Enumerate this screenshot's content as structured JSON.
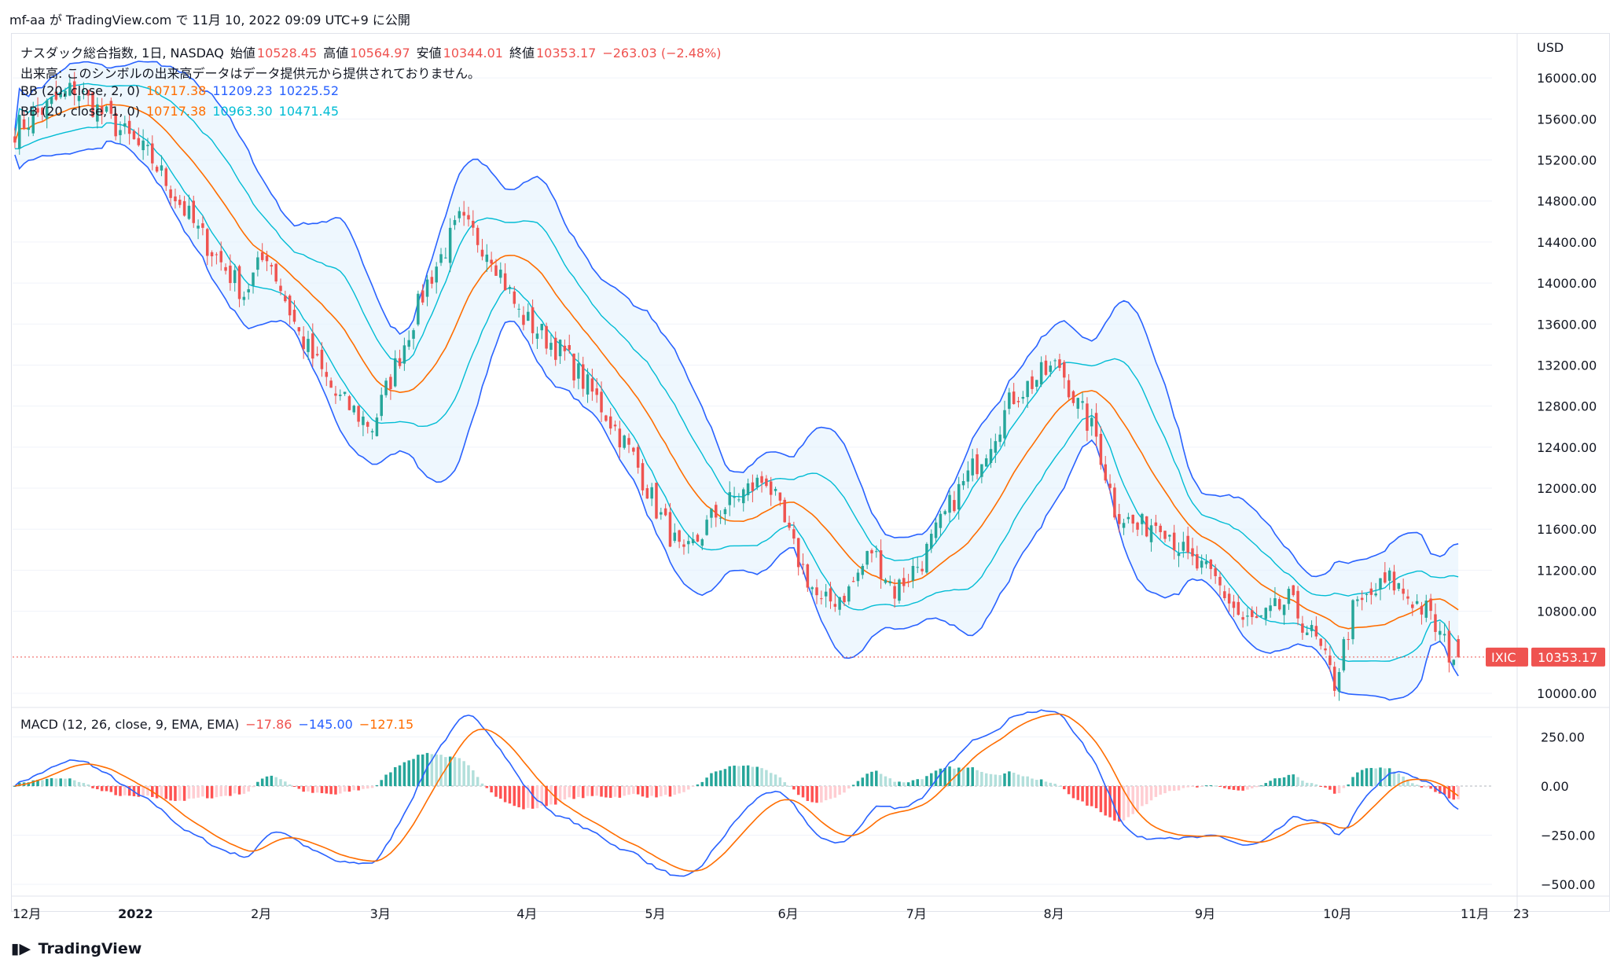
{
  "header": {
    "publish_text": "mf-aa が TradingView.com で 11月 10, 2022 09:09 UTC+9 に公開"
  },
  "legend": {
    "title": "ナスダック総合指数, 1日, NASDAQ",
    "open_label": "始値",
    "open": "10528.45",
    "high_label": "高値",
    "high": "10564.97",
    "low_label": "安値",
    "low": "10344.01",
    "close_label": "終値",
    "close": "10353.17",
    "change": "−263.03 (−2.48%)",
    "volume_note": "出来高: このシンボルの出来高データはデータ提供元から提供されておりません。",
    "bb1_label": "BB (20, close, 2, 0)",
    "bb1_basis": "10717.38",
    "bb1_upper": "11209.23",
    "bb1_lower": "10225.52",
    "bb2_label": "BB (20, close, 1, 0)",
    "bb2_basis": "10717.38",
    "bb2_upper": "10963.30",
    "bb2_lower": "10471.45",
    "macd_label": "MACD (12, 26, close, 9, EMA, EMA)",
    "macd_hist": "−17.86",
    "macd_line": "−145.00",
    "macd_signal": "−127.15"
  },
  "price_axis": {
    "currency": "USD",
    "ticks": [
      "16000.00",
      "15600.00",
      "15200.00",
      "14800.00",
      "14400.00",
      "14000.00",
      "13600.00",
      "13200.00",
      "12800.00",
      "12400.00",
      "12000.00",
      "11600.00",
      "11200.00",
      "10800.00",
      "10000.00"
    ],
    "last_symbol": "IXIC",
    "last_price": "10353.17"
  },
  "macd_axis": {
    "ticks": [
      "250.00",
      "0.00",
      "−250.00",
      "−500.00"
    ]
  },
  "time_axis": {
    "labels": [
      "12月",
      "2022",
      "2月",
      "3月",
      "4月",
      "5月",
      "6月",
      "7月",
      "8月",
      "9月",
      "10月",
      "11月",
      "23"
    ]
  },
  "footer": {
    "brand": "TradingView"
  },
  "colors": {
    "up": "#26a69a",
    "down": "#ef5350",
    "bb_outer": "#2962ff",
    "bb_inner": "#00bcd4",
    "basis": "#ff6d00",
    "fill": "#e3f2fd",
    "macd": "#2962ff",
    "signal": "#ff6d00",
    "hist_up": "#26a69a",
    "hist_up_light": "#b2dfdb",
    "hist_dn": "#ff5252",
    "hist_dn_light": "#ffcdd2"
  },
  "chart_data": {
    "type": "candlestick",
    "title": "ナスダック総合指数, 1日, NASDAQ",
    "interval": "1日",
    "ylim": [
      9900,
      16300
    ],
    "macd_ylim": [
      -560,
      360
    ],
    "date_start": "2021-12-01",
    "date_end": "2022-11-10",
    "anchors": [
      [
        0,
        15500
      ],
      [
        13,
        15900
      ],
      [
        30,
        15200
      ],
      [
        40,
        14500
      ],
      [
        50,
        13900
      ],
      [
        55,
        14300
      ],
      [
        62,
        13500
      ],
      [
        70,
        12900
      ],
      [
        78,
        12600
      ],
      [
        84,
        13300
      ],
      [
        90,
        14000
      ],
      [
        97,
        14600
      ],
      [
        104,
        14300
      ],
      [
        110,
        13700
      ],
      [
        120,
        13300
      ],
      [
        128,
        12800
      ],
      [
        135,
        12300
      ],
      [
        140,
        11800
      ],
      [
        146,
        11300
      ],
      [
        152,
        11700
      ],
      [
        157,
        11900
      ],
      [
        164,
        12100
      ],
      [
        170,
        11400
      ],
      [
        176,
        10850
      ],
      [
        182,
        11000
      ],
      [
        187,
        11400
      ],
      [
        192,
        11000
      ],
      [
        198,
        11300
      ],
      [
        205,
        11900
      ],
      [
        212,
        12400
      ],
      [
        218,
        12900
      ],
      [
        224,
        13100
      ],
      [
        228,
        13200
      ],
      [
        232,
        12800
      ],
      [
        236,
        12500
      ],
      [
        240,
        11800
      ],
      [
        245,
        11600
      ],
      [
        250,
        11700
      ],
      [
        256,
        11300
      ],
      [
        262,
        11100
      ],
      [
        268,
        10700
      ],
      [
        272,
        10700
      ],
      [
        278,
        10900
      ],
      [
        284,
        10500
      ],
      [
        288,
        10100
      ],
      [
        292,
        10800
      ],
      [
        300,
        11100
      ],
      [
        308,
        10800
      ],
      [
        313,
        10400
      ],
      [
        315,
        10353.17
      ]
    ],
    "last": {
      "open": 10528.45,
      "high": 10564.97,
      "low": 10344.01,
      "close": 10353.17
    },
    "bb_current": {
      "upper2": 11209.23,
      "basis": 10717.38,
      "lower2": 10225.52,
      "upper1": 10963.3,
      "lower1": 10471.45
    },
    "macd_current": {
      "hist": -17.86,
      "macd": -145.0,
      "signal": -127.15
    },
    "series": [
      {
        "name": "BB (20, close, 2, 0)",
        "values": "computed from close"
      },
      {
        "name": "BB (20, close, 1, 0)",
        "values": "computed from close"
      },
      {
        "name": "MACD (12, 26, close, 9, EMA, EMA)",
        "values": "computed from close"
      }
    ]
  }
}
